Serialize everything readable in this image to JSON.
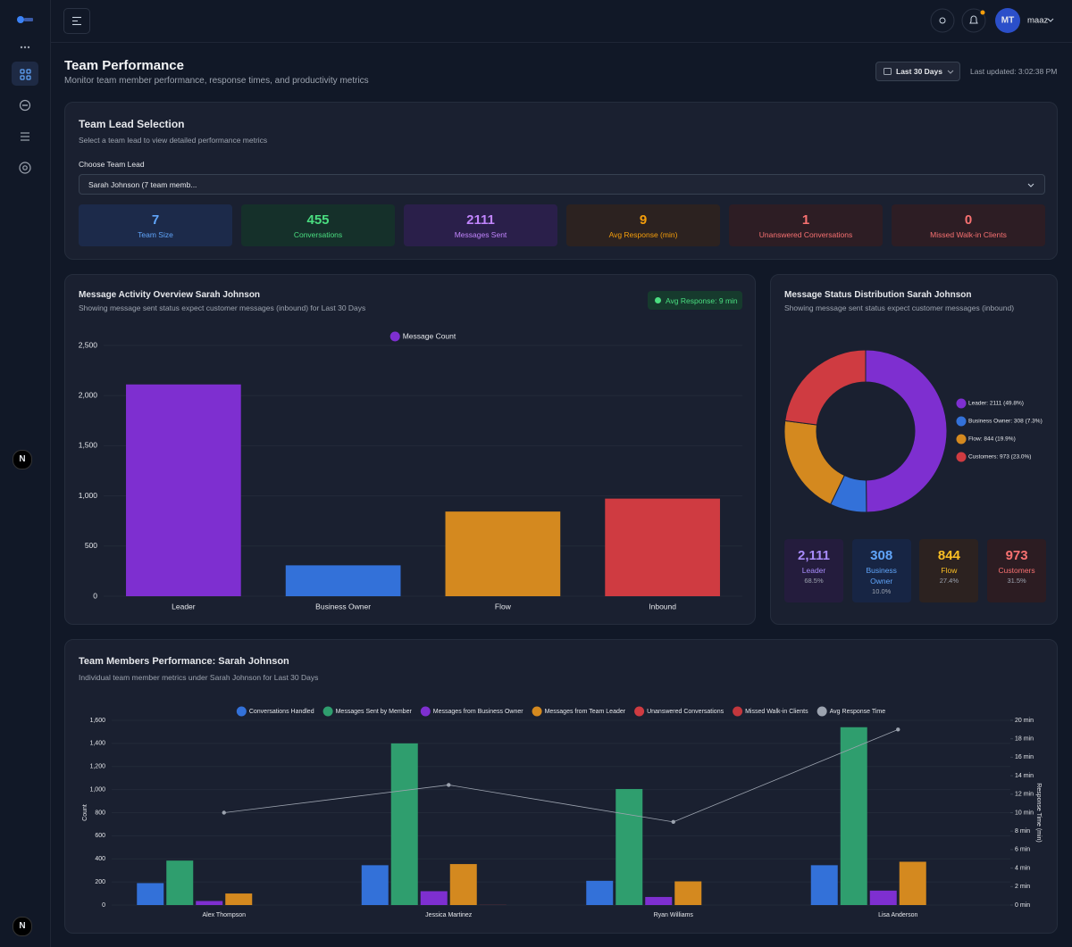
{
  "sidebar": {
    "badges": [
      "N",
      "N"
    ]
  },
  "topbar": {
    "avatar": "MT",
    "user": "maaz"
  },
  "header": {
    "title": "Team Performance",
    "subtitle": "Monitor team member performance, response times, and productivity metrics",
    "range": "Last 30 Days",
    "updated": "Last updated: 3:02:38 PM"
  },
  "selection": {
    "title": "Team Lead Selection",
    "subtitle": "Select a team lead to view detailed performance metrics",
    "field_label": "Choose Team Lead",
    "selected": "Sarah Johnson (7 team memb..."
  },
  "stats": [
    {
      "value": 7,
      "label": "Team Size"
    },
    {
      "value": 455,
      "label": "Conversations"
    },
    {
      "value": 2111,
      "label": "Messages Sent"
    },
    {
      "value": 9,
      "label": "Avg Response (min)"
    },
    {
      "value": 1,
      "label": "Unanswered Conversations"
    },
    {
      "value": 0,
      "label": "Missed Walk-in Clients"
    }
  ],
  "chart_data": [
    {
      "type": "bar",
      "title": "Message Activity Overview Sarah Johnson",
      "subtitle": "Showing message sent status expect customer messages (inbound) for Last 30 Days",
      "badge": "Avg Response: 9 min",
      "categories": [
        "Leader",
        "Business Owner",
        "Flow",
        "Inbound"
      ],
      "series": [
        {
          "name": "Message Count",
          "color": "#7e2fd0",
          "values": [
            2111,
            308,
            844,
            973
          ]
        }
      ],
      "colors": [
        "#7e2fd0",
        "#3371d9",
        "#d4891f",
        "#cf3b41"
      ],
      "ylim": [
        0,
        2500
      ],
      "yticks": [
        0,
        500,
        {
          "value": 1000,
          "label": "1,000"
        },
        {
          "value": 1500,
          "label": "1,500"
        },
        {
          "value": 2000,
          "label": "2,000"
        },
        {
          "value": 2500,
          "label": "2,500"
        }
      ],
      "grid": true
    },
    {
      "type": "pie",
      "title": "Message Status Distribution Sarah Johnson",
      "subtitle": "Showing message sent status expect customer messages (inbound)",
      "labels": [
        "Leader: 2111 (49.8%)",
        "Business Owner: 308 (7.3%)",
        "Flow: 844 (19.9%)",
        "Customers: 973 (23.0%)"
      ],
      "values": [
        2111,
        308,
        844,
        973
      ],
      "colors": [
        "#7e2fd0",
        "#3371d9",
        "#d4891f",
        "#cf3b41"
      ],
      "donut": true
    },
    {
      "type": "bar",
      "title": "Team Members Performance: Sarah Johnson",
      "subtitle": "Individual team member metrics under Sarah Johnson for Last 30 Days",
      "categories": [
        "Alex Thompson",
        "Jessica Martinez",
        "Ryan Williams",
        "Lisa Anderson"
      ],
      "series": [
        {
          "name": "Conversations Handled",
          "color": "#3371d9",
          "values": [
            190,
            345,
            210,
            345
          ]
        },
        {
          "name": "Messages Sent by Member",
          "color": "#2f9e6e",
          "values": [
            385,
            1400,
            1005,
            1540
          ]
        },
        {
          "name": "Messages from Business Owner",
          "color": "#7e2fd0",
          "values": [
            35,
            120,
            70,
            125
          ]
        },
        {
          "name": "Messages from Team Leader",
          "color": "#d4891f",
          "values": [
            100,
            355,
            205,
            375
          ]
        },
        {
          "name": "Unanswered Conversations",
          "color": "#cf3b41",
          "values": [
            0,
            1,
            0,
            0
          ]
        },
        {
          "name": "Missed Walk-in Clients",
          "color": "#c2373d",
          "values": [
            0,
            0,
            0,
            0
          ]
        },
        {
          "name": "Avg Response Time",
          "color": "#9ca3af",
          "type": "line",
          "axis": "y2",
          "values": [
            10,
            13,
            9,
            19
          ]
        }
      ],
      "ylabel": "Count",
      "y2label": "Response Time (min)",
      "ylim": [
        0,
        1600
      ],
      "yticks": [
        0,
        200,
        400,
        600,
        800,
        {
          "value": 1000,
          "label": "1,000"
        },
        {
          "value": 1200,
          "label": "1,200"
        },
        {
          "value": 1400,
          "label": "1,400"
        },
        {
          "value": 1600,
          "label": "1,600"
        }
      ],
      "y2lim": [
        0,
        20
      ],
      "y2ticks": [
        {
          "value": 0,
          "label": "0 min"
        },
        {
          "value": 2,
          "label": "2 min"
        },
        {
          "value": 4,
          "label": "4 min"
        },
        {
          "value": 6,
          "label": "6 min"
        },
        {
          "value": 8,
          "label": "8 min"
        },
        {
          "value": 10,
          "label": "10 min"
        },
        {
          "value": 12,
          "label": "12 min"
        },
        {
          "value": 14,
          "label": "14 min"
        },
        {
          "value": 16,
          "label": "16 min"
        },
        {
          "value": 18,
          "label": "18 min"
        },
        {
          "value": 20,
          "label": "20 min"
        }
      ],
      "grid": true
    }
  ],
  "distribution_cards": [
    {
      "value": "2,111",
      "label": "Leader",
      "share": "68.5%"
    },
    {
      "value": "308",
      "label": "Business Owner",
      "share": "10.0%"
    },
    {
      "value": "844",
      "label": "Flow",
      "share": "27.4%"
    },
    {
      "value": "973",
      "label": "Customers",
      "share": "31.5%"
    }
  ]
}
